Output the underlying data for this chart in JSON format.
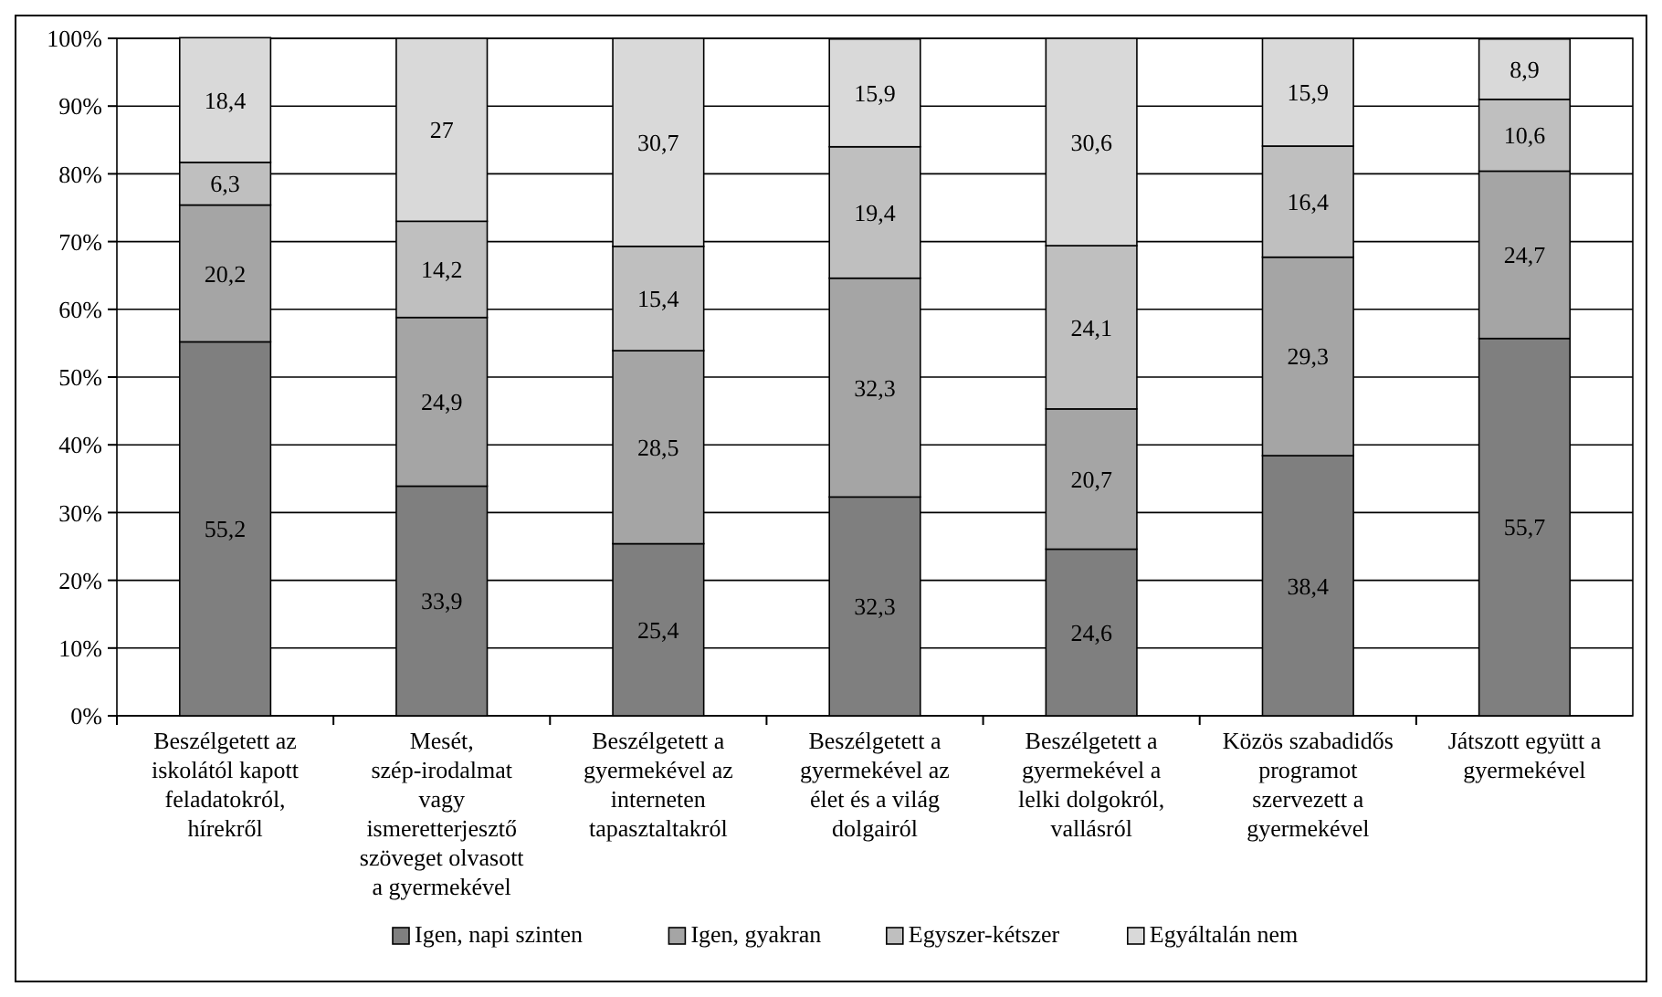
{
  "chart_data": {
    "type": "bar",
    "stacked": true,
    "grid": "y",
    "legend": "bottom",
    "categories": [
      "Beszélgetett az iskolától kapott feladatokról, hírekről",
      "Mesét, szép-irodalmat vagy ismeretterjesztő szöveget olvasott a gyermekével",
      "Beszélgetett a gyermekével az interneten tapasztaltakról",
      "Beszélgetett a gyermekével az élet és a világ dolgairól",
      "Beszélgetett a gyermekével a lelki dolgokról, vallásról",
      "Közös szabadidős programot szervezett a gyermekével",
      "Játszott együtt a gyermekével"
    ],
    "ylim": [
      0,
      100
    ],
    "yticks": [
      {
        "value": 0,
        "label": "0%"
      },
      {
        "value": 10,
        "label": "10%"
      },
      {
        "value": 20,
        "label": "20%"
      },
      {
        "value": 30,
        "label": "30%"
      },
      {
        "value": 40,
        "label": "40%"
      },
      {
        "value": 50,
        "label": "50%"
      },
      {
        "value": 60,
        "label": "60%"
      },
      {
        "value": 70,
        "label": "70%"
      },
      {
        "value": 80,
        "label": "80%"
      },
      {
        "value": 90,
        "label": "90%"
      },
      {
        "value": 100,
        "label": "100%"
      }
    ],
    "series": [
      {
        "name": "Igen, napi szinten",
        "color": "#7f7f7f",
        "values": [
          55.2,
          33.9,
          25.4,
          32.3,
          24.6,
          38.4,
          55.7
        ],
        "value_labels": [
          "55,2",
          "33,9",
          "25,4",
          "32,3",
          "24,6",
          "38,4",
          "55,7"
        ]
      },
      {
        "name": "Igen, gyakran",
        "color": "#a5a5a5",
        "values": [
          20.2,
          24.9,
          28.5,
          32.3,
          20.7,
          29.3,
          24.7
        ],
        "value_labels": [
          "20,2",
          "24,9",
          "28,5",
          "32,3",
          "20,7",
          "29,3",
          "24,7"
        ]
      },
      {
        "name": "Egyszer-kétszer",
        "color": "#bfbfbf",
        "values": [
          6.3,
          14.2,
          15.4,
          19.4,
          24.1,
          16.4,
          10.6
        ],
        "value_labels": [
          "6,3",
          "14,2",
          "15,4",
          "19,4",
          "24,1",
          "16,4",
          "10,6"
        ]
      },
      {
        "name": "Egyáltalán nem",
        "color": "#d9d9d9",
        "values": [
          18.4,
          27,
          30.7,
          15.9,
          30.6,
          15.9,
          8.9
        ],
        "value_labels": [
          "18,4",
          "27",
          "30,7",
          "15,9",
          "30,6",
          "15,9",
          "8,9"
        ]
      }
    ]
  }
}
